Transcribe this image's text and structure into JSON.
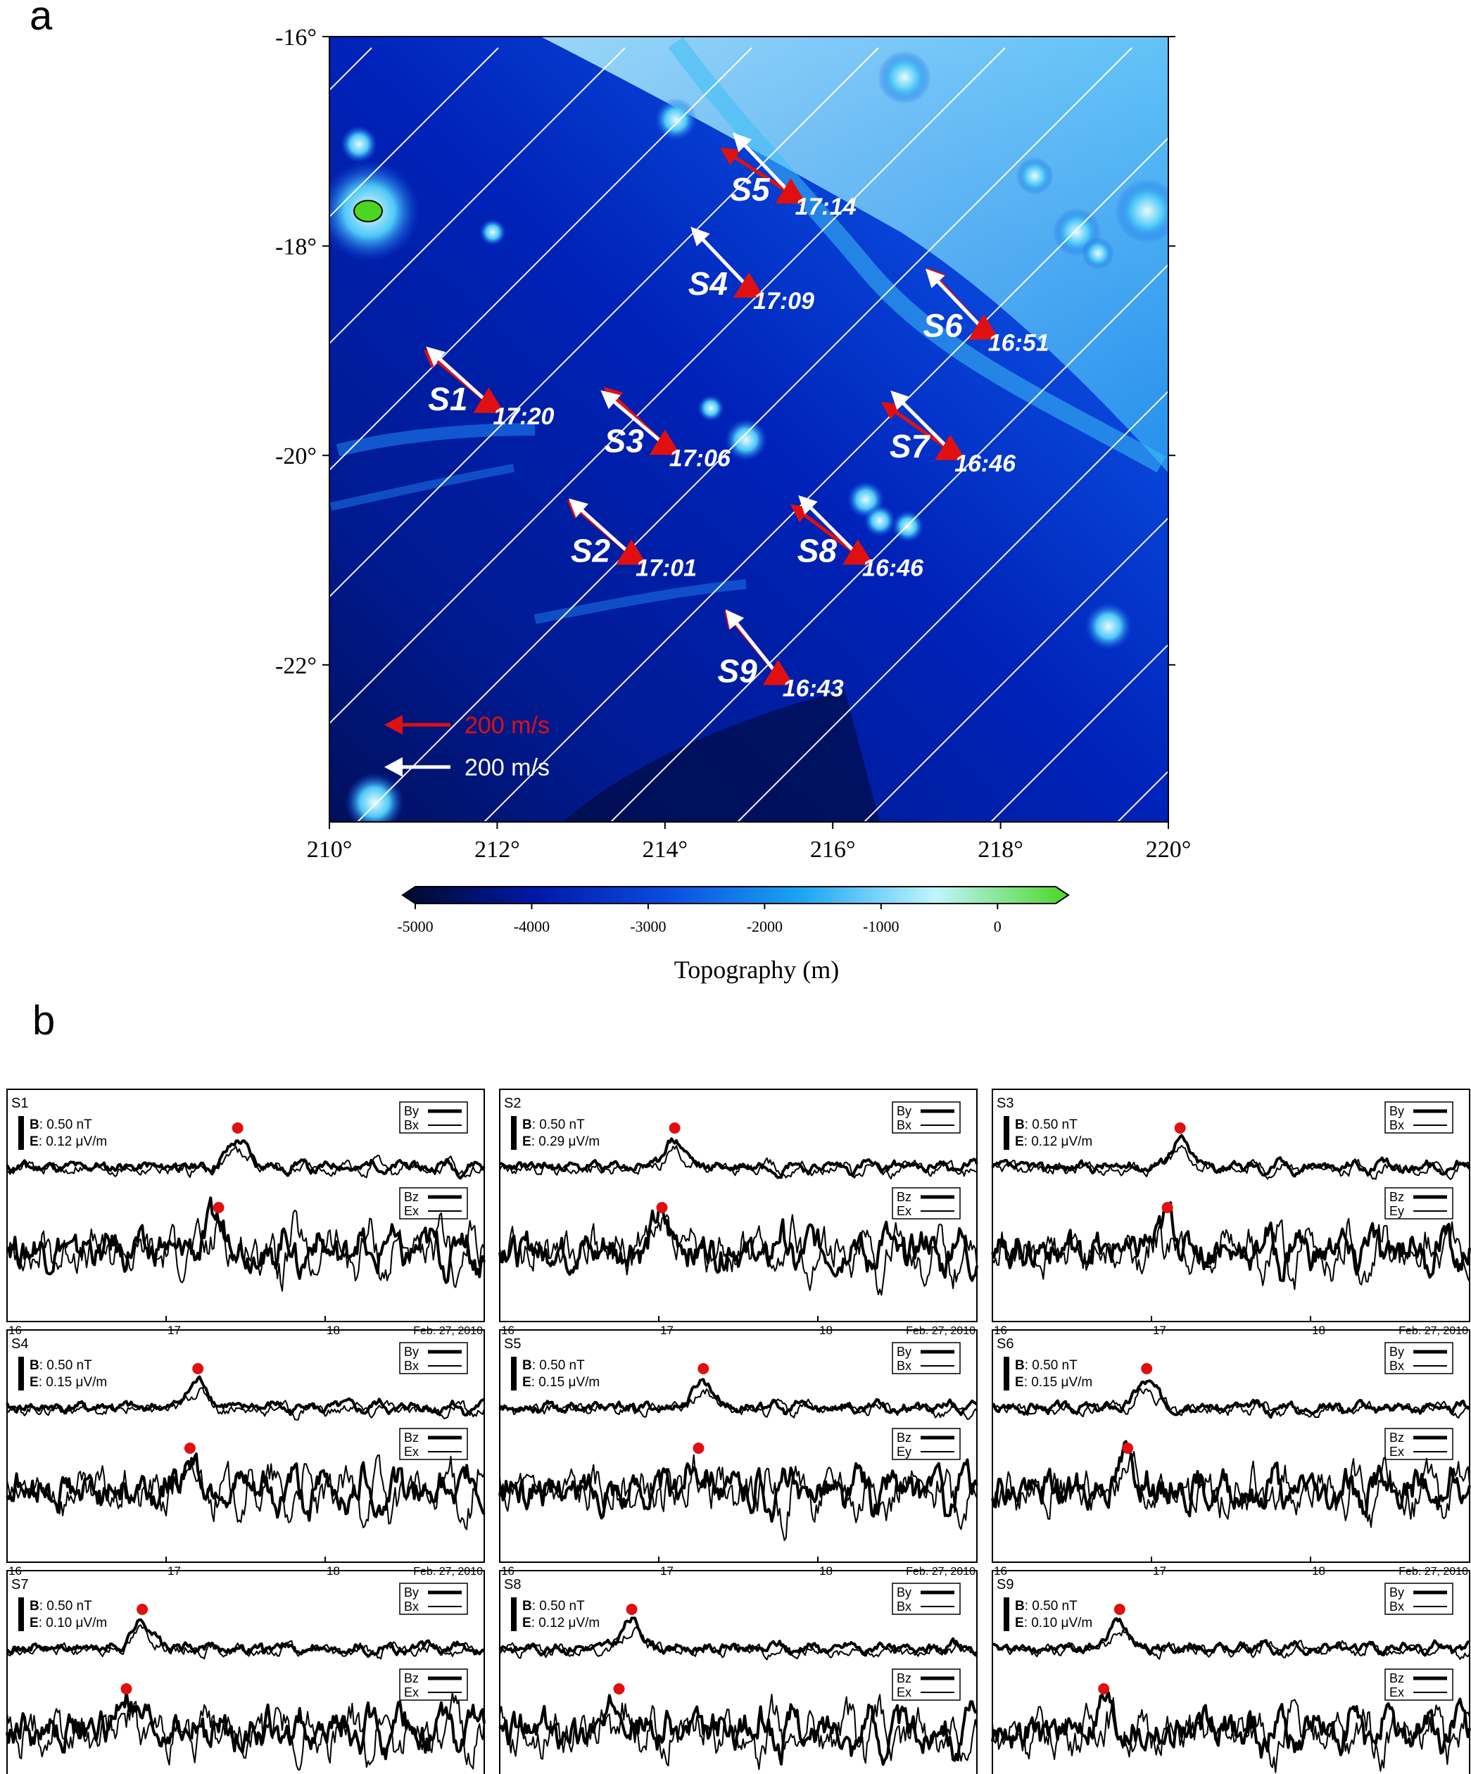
{
  "panel_labels": {
    "a": "a",
    "b": "b"
  },
  "map": {
    "lon_ticks": [
      {
        "value": 210,
        "label": "210°"
      },
      {
        "value": 212,
        "label": "212°"
      },
      {
        "value": 214,
        "label": "214°"
      },
      {
        "value": 216,
        "label": "216°"
      },
      {
        "value": 218,
        "label": "218°"
      },
      {
        "value": 220,
        "label": "220°"
      }
    ],
    "lat_ticks": [
      {
        "value": -16,
        "label": "-16°"
      },
      {
        "value": -18,
        "label": "-18°"
      },
      {
        "value": -20,
        "label": "-20°"
      },
      {
        "value": -22,
        "label": "-22°"
      }
    ],
    "xlim": [
      210,
      220
    ],
    "ylim": [
      -23.5,
      -16
    ],
    "stations": [
      {
        "id": "S1",
        "time": "17:20",
        "lon": 211.9,
        "lat": -19.5,
        "white_dir": [
          -1,
          0.9
        ],
        "red_dir": [
          -1,
          0.82
        ]
      },
      {
        "id": "S2",
        "time": "17:01",
        "lon": 213.6,
        "lat": -20.95,
        "white_dir": [
          -1,
          0.9
        ],
        "red_dir": [
          -1,
          0.85
        ]
      },
      {
        "id": "S3",
        "time": "17:06",
        "lon": 214.0,
        "lat": -19.9,
        "white_dir": [
          -1,
          0.85
        ],
        "red_dir": [
          -1,
          0.95
        ]
      },
      {
        "id": "S4",
        "time": "17:09",
        "lon": 215.0,
        "lat": -18.4,
        "white_dir": [
          -1,
          1.05
        ],
        "red_dir": [
          -1,
          1.05
        ]
      },
      {
        "id": "S5",
        "time": "17:14",
        "lon": 215.5,
        "lat": -17.5,
        "white_dir": [
          -1,
          1.05
        ],
        "red_dir": [
          -1,
          0.65
        ]
      },
      {
        "id": "S6",
        "time": "16:51",
        "lon": 217.8,
        "lat": -18.8,
        "white_dir": [
          -1,
          1.05
        ],
        "red_dir": [
          -1,
          1.1
        ]
      },
      {
        "id": "S7",
        "time": "16:46",
        "lon": 217.4,
        "lat": -19.95,
        "white_dir": [
          -1,
          1.0
        ],
        "red_dir": [
          -1,
          0.7
        ]
      },
      {
        "id": "S8",
        "time": "16:46",
        "lon": 216.3,
        "lat": -20.95,
        "white_dir": [
          -1,
          1.0
        ],
        "red_dir": [
          -1,
          0.75
        ]
      },
      {
        "id": "S9",
        "time": "16:43",
        "lon": 215.35,
        "lat": -22.1,
        "white_dir": [
          -1,
          1.25
        ],
        "red_dir": [
          -1,
          1.2
        ]
      }
    ],
    "legend": [
      {
        "label": "200 m/s",
        "color": "#e01010"
      },
      {
        "label": "200 m/s",
        "color": "#ffffff"
      }
    ],
    "colorbar": {
      "ticks": [
        -5000,
        -4000,
        -3000,
        -2000,
        -1000,
        0
      ],
      "tick_labels": [
        "-5000",
        "-4000",
        "-3000",
        "-2000",
        "-1000",
        "0"
      ],
      "label": "Topography (m)",
      "range": [
        -5000,
        500
      ],
      "colors": [
        "#000a28",
        "#0018a8",
        "#0a4de0",
        "#1aa6f2",
        "#c0f5ff",
        "#4cd624"
      ]
    }
  },
  "chart_data": {
    "type": "line",
    "xlim": [
      16,
      19
    ],
    "x_ticks": [
      16,
      17,
      18
    ],
    "x_tick_labels": [
      "16",
      "17",
      "18"
    ],
    "date_label": "Feb. 27, 2010",
    "panels": [
      {
        "id": "S1",
        "b_scale": "0.50 nT",
        "e_scale": "0.12 μV/m",
        "upper_legend": [
          "By",
          "Bx"
        ],
        "lower_legend": [
          "Bz",
          "Ex"
        ],
        "peak_upper_x": 17.45,
        "peak_lower_x": 17.33,
        "seed": 11
      },
      {
        "id": "S2",
        "b_scale": "0.50 nT",
        "e_scale": "0.29 μV/m",
        "upper_legend": [
          "By",
          "Bx"
        ],
        "lower_legend": [
          "Bz",
          "Ex"
        ],
        "peak_upper_x": 17.1,
        "peak_lower_x": 17.02,
        "seed": 23
      },
      {
        "id": "S3",
        "b_scale": "0.50 nT",
        "e_scale": "0.12 μV/m",
        "upper_legend": [
          "By",
          "Bx"
        ],
        "lower_legend": [
          "Bz",
          "Ey"
        ],
        "peak_upper_x": 17.18,
        "peak_lower_x": 17.1,
        "seed": 37
      },
      {
        "id": "S4",
        "b_scale": "0.50 nT",
        "e_scale": "0.15 μV/m",
        "upper_legend": [
          "By",
          "Bx"
        ],
        "lower_legend": [
          "Bz",
          "Ex"
        ],
        "peak_upper_x": 17.2,
        "peak_lower_x": 17.15,
        "seed": 41
      },
      {
        "id": "S5",
        "b_scale": "0.50 nT",
        "e_scale": "0.15 μV/m",
        "upper_legend": [
          "By",
          "Bx"
        ],
        "lower_legend": [
          "Bz",
          "Ey"
        ],
        "peak_upper_x": 17.28,
        "peak_lower_x": 17.25,
        "seed": 53
      },
      {
        "id": "S6",
        "b_scale": "0.50 nT",
        "e_scale": "0.15 μV/m",
        "upper_legend": [
          "By",
          "Bx"
        ],
        "lower_legend": [
          "Bz",
          "Ex"
        ],
        "peak_upper_x": 16.97,
        "peak_lower_x": 16.85,
        "seed": 67
      },
      {
        "id": "S7",
        "b_scale": "0.50 nT",
        "e_scale": "0.10 μV/m",
        "upper_legend": [
          "By",
          "Bx"
        ],
        "lower_legend": [
          "Bz",
          "Ex"
        ],
        "peak_upper_x": 16.85,
        "peak_lower_x": 16.75,
        "seed": 71
      },
      {
        "id": "S8",
        "b_scale": "0.50 nT",
        "e_scale": "0.12 μV/m",
        "upper_legend": [
          "By",
          "Bx"
        ],
        "lower_legend": [
          "Bz",
          "Ex"
        ],
        "peak_upper_x": 16.83,
        "peak_lower_x": 16.75,
        "seed": 83
      },
      {
        "id": "S9",
        "b_scale": "0.50 nT",
        "e_scale": "0.10 μV/m",
        "upper_legend": [
          "By",
          "Bx"
        ],
        "lower_legend": [
          "Bz",
          "Ex"
        ],
        "peak_upper_x": 16.8,
        "peak_lower_x": 16.7,
        "seed": 97
      }
    ]
  }
}
